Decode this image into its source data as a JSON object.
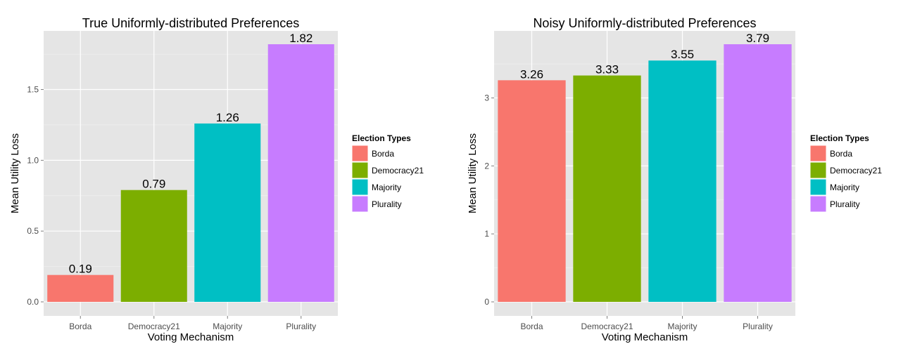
{
  "chart_data": [
    {
      "type": "bar",
      "title": "True Uniformly-distributed Preferences",
      "xlabel": "Voting Mechanism",
      "ylabel": "Mean Utility Loss",
      "categories": [
        "Borda",
        "Democracy21",
        "Majority",
        "Plurality"
      ],
      "values": [
        0.19,
        0.79,
        1.26,
        1.82
      ],
      "value_labels": [
        "0.19",
        "0.79",
        "1.26",
        "1.82"
      ],
      "colors": [
        "#F8766D",
        "#7CAE00",
        "#00BFC4",
        "#C77CFF"
      ],
      "ylim": [
        0,
        1.82
      ],
      "yticks": [
        0.0,
        0.5,
        1.0,
        1.5
      ],
      "ytick_labels": [
        "0.0",
        "0.5",
        "1.0",
        "1.5"
      ],
      "grid": true,
      "legend": {
        "title": "Election Types",
        "entries": [
          "Borda",
          "Democracy21",
          "Majority",
          "Plurality"
        ],
        "placement": "right"
      }
    },
    {
      "type": "bar",
      "title": "Noisy Uniformly-distributed Preferences",
      "xlabel": "Voting Mechanism",
      "ylabel": "Mean Utility Loss",
      "categories": [
        "Borda",
        "Democracy21",
        "Majority",
        "Plurality"
      ],
      "values": [
        3.26,
        3.33,
        3.55,
        3.79
      ],
      "value_labels": [
        "3.26",
        "3.33",
        "3.55",
        "3.79"
      ],
      "colors": [
        "#F8766D",
        "#7CAE00",
        "#00BFC4",
        "#C77CFF"
      ],
      "ylim": [
        0,
        3.79
      ],
      "yticks": [
        0,
        1,
        2,
        3
      ],
      "ytick_labels": [
        "0",
        "1",
        "2",
        "3"
      ],
      "grid": true,
      "legend": {
        "title": "Election Types",
        "entries": [
          "Borda",
          "Democracy21",
          "Majority",
          "Plurality"
        ],
        "placement": "right"
      }
    }
  ]
}
